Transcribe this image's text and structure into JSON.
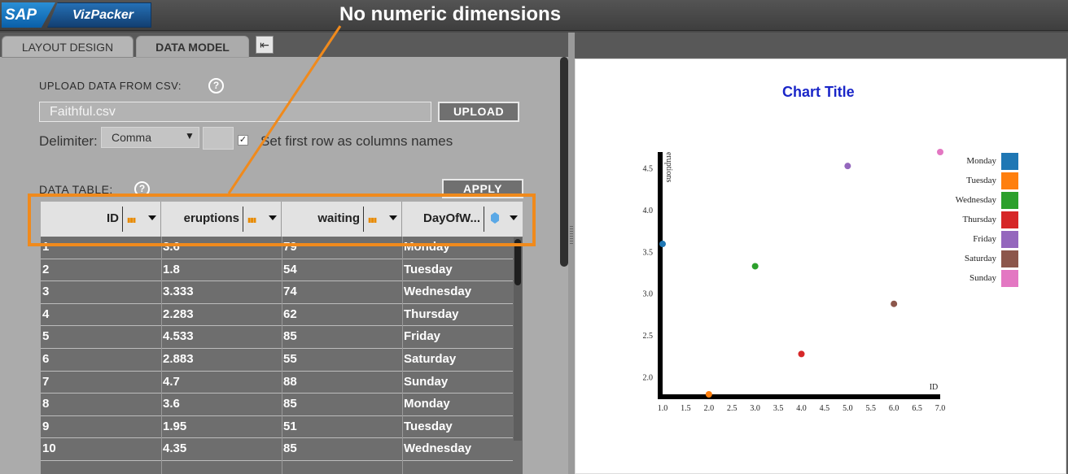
{
  "app": {
    "logo": "SAP",
    "name": "VizPacker",
    "annotation": "No numeric dimensions"
  },
  "tabs": {
    "layout": "LAYOUT DESIGN",
    "data": "DATA MODEL",
    "collapse_glyph": "⇤"
  },
  "upload": {
    "label": "UPLOAD DATA FROM CSV:",
    "help": "?",
    "file_value": "Faithful.csv",
    "upload_button": "UPLOAD",
    "delimiter_label": "Delimiter:",
    "delimiter_value": "Comma",
    "first_row_checked": "✓",
    "first_row_label": "Set first row as columns names"
  },
  "data_table": {
    "label": "DATA TABLE:",
    "help": "?",
    "apply_button": "APPLY",
    "columns": [
      {
        "label": "ID",
        "kind": "measure",
        "icon": "measure-icon"
      },
      {
        "label": "eruptions",
        "kind": "measure",
        "icon": "measure-icon"
      },
      {
        "label": "waiting",
        "kind": "measure",
        "icon": "measure-icon"
      },
      {
        "label": "DayOfW...",
        "kind": "dimension",
        "icon": "dimension-icon"
      }
    ],
    "measure_glyph": "▮▮▮",
    "rows": [
      [
        "1",
        "3.6",
        "79",
        "Monday"
      ],
      [
        "2",
        "1.8",
        "54",
        "Tuesday"
      ],
      [
        "3",
        "3.333",
        "74",
        "Wednesday"
      ],
      [
        "4",
        "2.283",
        "62",
        "Thursday"
      ],
      [
        "5",
        "4.533",
        "85",
        "Friday"
      ],
      [
        "6",
        "2.883",
        "55",
        "Saturday"
      ],
      [
        "7",
        "4.7",
        "88",
        "Sunday"
      ],
      [
        "8",
        "3.6",
        "85",
        "Monday"
      ],
      [
        "9",
        "1.95",
        "51",
        "Tuesday"
      ],
      [
        "10",
        "4.35",
        "85",
        "Wednesday"
      ]
    ]
  },
  "chart_data": {
    "type": "scatter",
    "title": "Chart Title",
    "xlabel": "ID",
    "ylabel": "eruptions",
    "xlim": [
      1.0,
      7.0
    ],
    "ylim": [
      1.8,
      4.7
    ],
    "xticks": [
      "1.0",
      "1.5",
      "2.0",
      "2.5",
      "3.0",
      "3.5",
      "4.0",
      "4.5",
      "5.0",
      "5.5",
      "6.0",
      "6.5",
      "7.0"
    ],
    "yticks": [
      "2.0",
      "2.5",
      "3.0",
      "3.5",
      "4.0",
      "4.5"
    ],
    "legend_position": "top-right",
    "series": [
      {
        "name": "Monday",
        "color": "#1f77b4",
        "x": 1,
        "y": 3.6
      },
      {
        "name": "Tuesday",
        "color": "#ff7f0e",
        "x": 2,
        "y": 1.8
      },
      {
        "name": "Wednesday",
        "color": "#2ca02c",
        "x": 3,
        "y": 3.333
      },
      {
        "name": "Thursday",
        "color": "#d62728",
        "x": 4,
        "y": 2.283
      },
      {
        "name": "Friday",
        "color": "#9467bd",
        "x": 5,
        "y": 4.533
      },
      {
        "name": "Saturday",
        "color": "#8c564b",
        "x": 6,
        "y": 2.883
      },
      {
        "name": "Sunday",
        "color": "#e377c2",
        "x": 7,
        "y": 4.7
      }
    ]
  }
}
